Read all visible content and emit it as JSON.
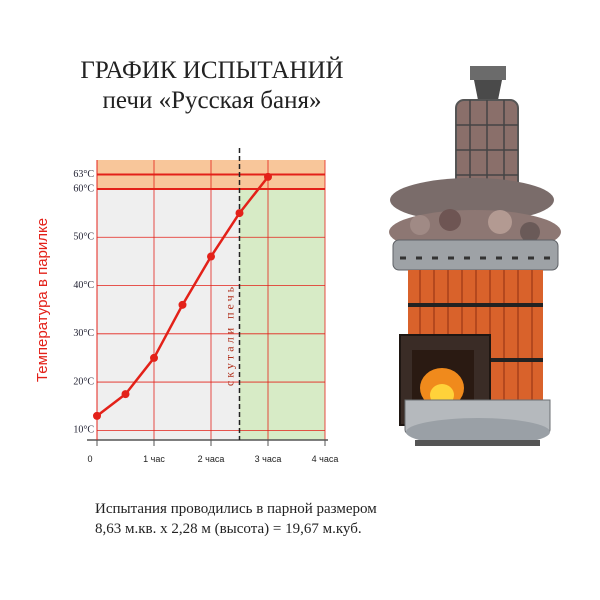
{
  "chart_data": {
    "type": "line",
    "title": "ГРАФИК ИСПЫТАНИЙ",
    "subtitle": "печи «Русская баня»",
    "y_label": "Температура  в парилке",
    "x": [
      0,
      0.5,
      1,
      1.5,
      2,
      2.5,
      3
    ],
    "values": [
      13,
      17.5,
      25,
      36,
      46,
      55,
      62.5
    ],
    "color": "#e32119",
    "xlim": [
      0,
      4
    ],
    "xticks": [
      0,
      {
        "value": 1,
        "label": "1 час"
      },
      {
        "value": 2,
        "label": "2 часа"
      },
      {
        "value": 3,
        "label": "3 часа"
      },
      {
        "value": 4,
        "label": "4 часа"
      }
    ],
    "ylim": [
      8,
      66
    ],
    "yticks": [
      {
        "value": 10,
        "label": "10°C"
      },
      {
        "value": 20,
        "label": "20°C"
      },
      {
        "value": 30,
        "label": "30°C"
      },
      {
        "value": 40,
        "label": "40°C"
      },
      {
        "value": 50,
        "label": "50°C"
      },
      {
        "value": 60,
        "label": "60°C"
      },
      {
        "value": 63,
        "label": "63°C"
      }
    ],
    "grid": true,
    "hot_zone_from": 60,
    "divider": {
      "x": 2.5,
      "label": "скутали  печь"
    },
    "note": [
      "Испытания проводились в парной размером",
      "8,63 м.кв. х 2,28 м (высота) = 19,67 м.куб."
    ]
  }
}
